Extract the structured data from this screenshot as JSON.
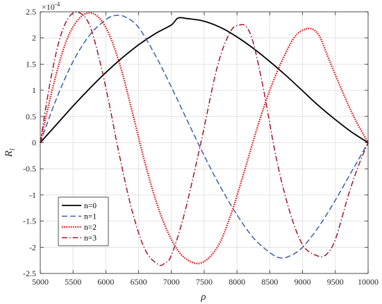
{
  "chart_data": {
    "type": "line",
    "title": "",
    "xlabel": "ρ",
    "ylabel": "R",
    "ylabel_subscript": "l",
    "exponent_label": "×10",
    "exponent_power": "-4",
    "xlim": [
      5000,
      10000
    ],
    "ylim": [
      -2.5,
      2.5
    ],
    "grid": true,
    "legend_position": "lower-left",
    "x_ticks": [
      "5000",
      "5500",
      "6000",
      "6500",
      "7000",
      "7500",
      "8000",
      "8500",
      "9000",
      "9500",
      "10000"
    ],
    "y_ticks": [
      "-2.5",
      "-2",
      "-1.5",
      "-1",
      "-0.5",
      "0",
      "0.5",
      "1",
      "1.5",
      "2",
      "2.5"
    ],
    "x_tick_values": [
      5000,
      5500,
      6000,
      6500,
      7000,
      7500,
      8000,
      8500,
      9000,
      9500,
      10000
    ],
    "y_tick_values": [
      -2.5,
      -2,
      -1.5,
      -1,
      -0.5,
      0,
      0.5,
      1,
      1.5,
      2,
      2.5
    ],
    "series": [
      {
        "name": "n=0",
        "color": "#000000",
        "style": "solid",
        "x": [
          5000,
          5250,
          5500,
          5750,
          6000,
          6250,
          6500,
          6750,
          7000,
          7100,
          7250,
          7500,
          7750,
          8000,
          8250,
          8500,
          8750,
          9000,
          9250,
          9500,
          9750,
          10000
        ],
        "y": [
          0,
          0.35,
          0.7,
          1.03,
          1.34,
          1.62,
          1.87,
          2.08,
          2.25,
          2.38,
          2.37,
          2.32,
          2.2,
          2.02,
          1.8,
          1.55,
          1.28,
          0.99,
          0.7,
          0.44,
          0.2,
          0
        ]
      },
      {
        "name": "n=1",
        "color": "#3a5fa8",
        "style": "dashed",
        "x": [
          5000,
          5250,
          5500,
          5750,
          6000,
          6150,
          6300,
          6500,
          6750,
          7000,
          7250,
          7500,
          7750,
          8000,
          8250,
          8500,
          8650,
          8800,
          9000,
          9250,
          9500,
          9750,
          10000
        ],
        "y": [
          0,
          0.85,
          1.55,
          2.05,
          2.35,
          2.43,
          2.4,
          2.2,
          1.68,
          1.06,
          0.4,
          -0.25,
          -0.85,
          -1.38,
          -1.82,
          -2.1,
          -2.2,
          -2.17,
          -2.0,
          -1.6,
          -1.1,
          -0.55,
          0
        ]
      },
      {
        "name": "n=2",
        "color": "#e0191d",
        "style": "dotted",
        "x": [
          5000,
          5200,
          5400,
          5600,
          5800,
          6000,
          6200,
          6400,
          6600,
          6800,
          7000,
          7200,
          7450,
          7700,
          7900,
          8100,
          8300,
          8500,
          8700,
          8900,
          9100,
          9250,
          9400,
          9600,
          9800,
          10000
        ],
        "y": [
          0,
          1.1,
          1.95,
          2.38,
          2.47,
          2.2,
          1.55,
          0.6,
          -0.4,
          -1.25,
          -1.85,
          -2.2,
          -2.3,
          -2.0,
          -1.4,
          -0.6,
          0.25,
          1.0,
          1.6,
          2.05,
          2.18,
          2.05,
          1.6,
          1.0,
          0.45,
          0
        ]
      },
      {
        "name": "n=3",
        "color": "#a0152b",
        "style": "dashdot",
        "x": [
          5000,
          5150,
          5300,
          5450,
          5600,
          5750,
          5900,
          6050,
          6200,
          6400,
          6600,
          6800,
          6900,
          7000,
          7200,
          7450,
          7700,
          7900,
          8050,
          8150,
          8250,
          8400,
          8600,
          8800,
          9000,
          9200,
          9350,
          9500,
          9700,
          9850,
          10000
        ],
        "y": [
          0,
          1.15,
          2.0,
          2.42,
          2.48,
          2.25,
          1.6,
          0.75,
          -0.2,
          -1.3,
          -2.05,
          -2.33,
          -2.3,
          -2.15,
          -1.35,
          0.0,
          1.45,
          2.12,
          2.25,
          2.2,
          1.9,
          1.05,
          -0.3,
          -1.3,
          -1.95,
          -2.15,
          -2.15,
          -1.85,
          -1.0,
          -0.45,
          0
        ]
      }
    ]
  }
}
